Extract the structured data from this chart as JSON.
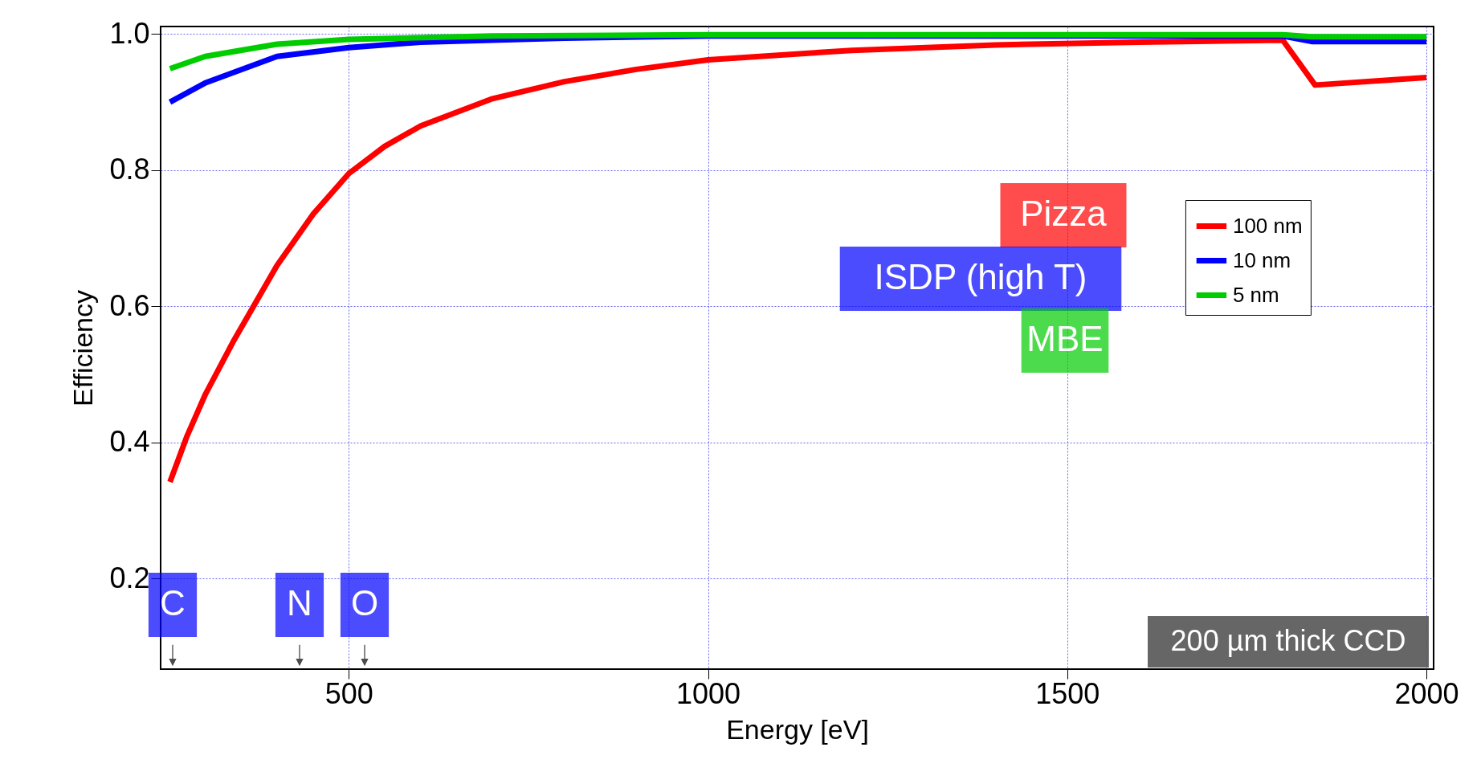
{
  "chart_data": {
    "type": "line",
    "xlabel": "Energy [eV]",
    "ylabel": "Efficiency",
    "xlim": [
      238,
      2010
    ],
    "ylim": [
      0.067,
      1.011
    ],
    "xticks": [
      500,
      1000,
      1500,
      2000
    ],
    "yticks": [
      0.2,
      0.4,
      0.6,
      0.8,
      {
        "value": 1,
        "label": "1.0"
      }
    ],
    "grid": true,
    "legend": "right",
    "series": [
      {
        "name": "100 nm",
        "color": "#ff0000",
        "x": [
          251,
          275,
          300,
          340,
          400,
          450,
          500,
          550,
          600,
          700,
          800,
          900,
          1000,
          1200,
          1400,
          1600,
          1800,
          1845,
          2000
        ],
        "values": [
          0.342,
          0.41,
          0.47,
          0.55,
          0.66,
          0.735,
          0.795,
          0.835,
          0.865,
          0.905,
          0.93,
          0.948,
          0.962,
          0.976,
          0.984,
          0.988,
          0.991,
          0.925,
          0.936
        ]
      },
      {
        "name": "10 nm",
        "color": "#0000ff",
        "x": [
          251,
          300,
          400,
          500,
          600,
          800,
          1000,
          1800,
          1840,
          2000
        ],
        "values": [
          0.9,
          0.928,
          0.967,
          0.98,
          0.988,
          0.994,
          0.997,
          0.997,
          0.989,
          0.989
        ]
      },
      {
        "name": "5 nm",
        "color": "#00cc00",
        "x": [
          251,
          300,
          400,
          500,
          700,
          1000,
          1800,
          1840,
          2000
        ],
        "values": [
          0.949,
          0.967,
          0.985,
          0.992,
          0.997,
          0.999,
          0.999,
          0.996,
          0.996
        ]
      }
    ],
    "annotations": [
      "Pizza",
      "ISDP (high T)",
      "MBE",
      "C",
      "N",
      "O",
      "200 µm thick CCD"
    ]
  }
}
